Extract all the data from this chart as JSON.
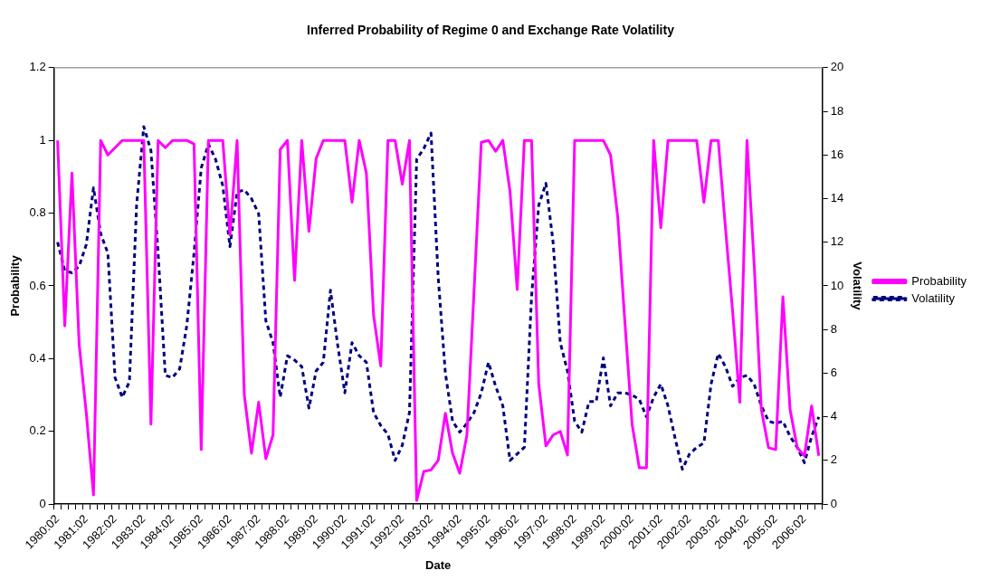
{
  "chart_data": {
    "type": "line",
    "title": "Inferred Probability of Regime 0 and Exchange Rate Volatility",
    "xlabel": "Date",
    "ylabel": "Probability",
    "y2label": "Volatility",
    "categories": [
      "1980:02",
      null,
      null,
      null,
      "1981:02",
      null,
      null,
      null,
      "1982:02",
      null,
      null,
      null,
      "1983:02",
      null,
      null,
      null,
      "1984:02",
      null,
      null,
      null,
      "1985:02",
      null,
      null,
      null,
      "1986:02",
      null,
      null,
      null,
      "1987:02",
      null,
      null,
      null,
      "1988:02",
      null,
      null,
      null,
      "1989:02",
      null,
      null,
      null,
      "1990:02",
      null,
      null,
      null,
      "1991:02",
      null,
      null,
      null,
      "1992:02",
      null,
      null,
      null,
      "1993:02",
      null,
      null,
      null,
      "1994:02",
      null,
      null,
      null,
      "1995:02",
      null,
      null,
      null,
      "1996:02",
      null,
      null,
      null,
      "1997:02",
      null,
      null,
      null,
      "1998:02",
      null,
      null,
      null,
      "1999:02",
      null,
      null,
      null,
      "2000:02",
      null,
      null,
      null,
      "2001:02",
      null,
      null,
      null,
      "2002:02",
      null,
      null,
      null,
      "2003:02",
      null,
      null,
      null,
      "2004:02",
      null,
      null,
      null,
      "2005:02",
      null,
      null,
      null,
      "2006:02",
      null,
      null
    ],
    "series": [
      {
        "name": "Probability",
        "color": "#ff00ff",
        "line_style": "solid",
        "values": [
          1.0,
          0.49,
          0.91,
          0.44,
          0.25,
          0.025,
          1.0,
          0.96,
          0.98,
          1.0,
          1.0,
          1.0,
          1.0,
          0.22,
          1.0,
          0.98,
          1.0,
          1.0,
          1.0,
          0.99,
          0.15,
          1.0,
          1.0,
          1.0,
          0.74,
          1.0,
          0.3,
          0.14,
          0.28,
          0.125,
          0.19,
          0.975,
          1.0,
          0.615,
          1.0,
          0.75,
          0.95,
          1.0,
          1.0,
          1.0,
          1.0,
          0.83,
          1.0,
          0.91,
          0.52,
          0.38,
          1.0,
          1.0,
          0.88,
          1.0,
          0.01,
          0.09,
          0.094,
          0.12,
          0.25,
          0.14,
          0.085,
          0.19,
          0.59,
          0.995,
          1.0,
          0.97,
          1.0,
          0.86,
          0.59,
          1.0,
          1.0,
          0.33,
          0.16,
          0.19,
          0.2,
          0.135,
          1.0,
          1.0,
          1.0,
          1.0,
          1.0,
          0.96,
          0.79,
          0.5,
          0.22,
          0.1,
          0.1,
          1.0,
          0.76,
          1.0,
          1.0,
          1.0,
          1.0,
          1.0,
          0.83,
          1.0,
          1.0,
          0.76,
          0.53,
          0.28,
          1.0,
          0.66,
          0.26,
          0.155,
          0.15,
          0.57,
          0.26,
          0.155,
          0.133,
          0.27,
          0.133
        ]
      },
      {
        "name": "Volatility",
        "color": "#000080",
        "line_style": "dashed",
        "axis": "y2",
        "values": [
          12.0,
          10.7,
          10.6,
          10.9,
          11.9,
          14.5,
          12.4,
          11.5,
          5.8,
          4.9,
          5.6,
          13.7,
          17.3,
          16.2,
          11.5,
          5.9,
          5.8,
          6.2,
          8.2,
          11.5,
          15.4,
          16.5,
          15.8,
          14.6,
          11.8,
          14.3,
          14.4,
          14.0,
          13.3,
          8.4,
          7.4,
          4.9,
          6.8,
          6.6,
          6.3,
          4.4,
          6.1,
          6.5,
          9.8,
          7.3,
          5.1,
          7.4,
          6.8,
          6.5,
          4.2,
          3.6,
          3.2,
          2.0,
          2.7,
          4.2,
          15.8,
          16.3,
          17.0,
          10.4,
          6.0,
          3.8,
          3.3,
          3.7,
          4.2,
          5.1,
          6.5,
          5.4,
          4.5,
          2.0,
          2.3,
          2.6,
          9.5,
          13.7,
          14.7,
          12.0,
          7.4,
          6.1,
          3.8,
          3.3,
          4.7,
          4.7,
          6.7,
          4.5,
          5.1,
          5.1,
          5.0,
          4.8,
          4.0,
          4.9,
          5.5,
          4.5,
          3.0,
          1.6,
          2.3,
          2.6,
          2.8,
          5.5,
          6.9,
          6.3,
          5.4,
          5.8,
          5.9,
          5.5,
          4.5,
          3.8,
          3.7,
          3.8,
          3.1,
          2.6,
          1.9,
          3.1,
          4.0
        ]
      }
    ],
    "ylim": [
      0,
      1.2
    ],
    "yticks": [
      0,
      0.2,
      0.4,
      0.6,
      0.8,
      1,
      1.2
    ],
    "y2lim": [
      0,
      20
    ],
    "y2ticks": [
      0,
      2,
      4,
      6,
      8,
      10,
      12,
      14,
      16,
      18,
      20
    ],
    "grid": false,
    "legend": "right"
  }
}
